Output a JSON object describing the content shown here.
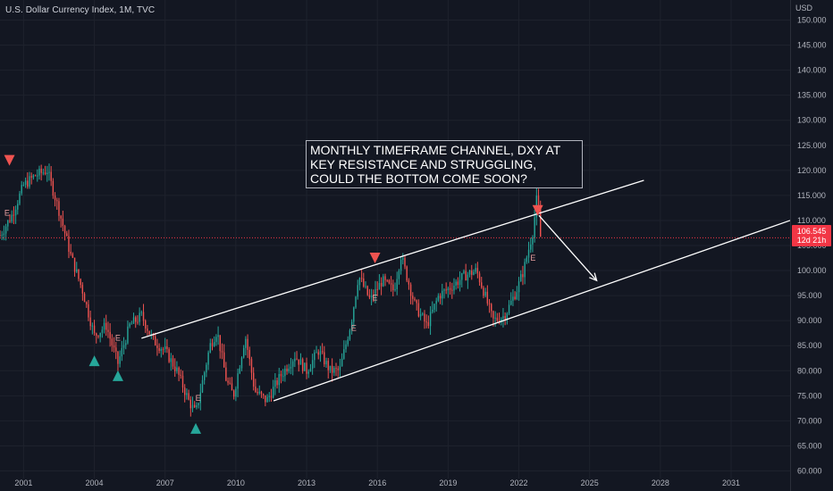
{
  "header": {
    "symbol_title": "U.S. Dollar Currency Index, 1M, TVC"
  },
  "annotation": {
    "text": "MONTHLY TIMEFRAME CHANNEL, DXY AT KEY RESISTANCE AND STRUGGLING, COULD THE BOTTOM COME SOON?"
  },
  "price_tag": {
    "price": "106.545",
    "countdown": "12d 21h"
  },
  "colors": {
    "background": "#131722",
    "up": "#26a69a",
    "down": "#ef5350",
    "grid": "#1e222d",
    "text": "#b2b5be",
    "channel": "#ffffff",
    "price_line": "#f23645"
  },
  "chart_data": {
    "type": "candlestick",
    "title": "U.S. Dollar Currency Index, 1M, TVC",
    "y_unit": "USD",
    "ylim": [
      56,
      154
    ],
    "xlim": [
      2000.0,
      2033.5
    ],
    "y_ticks": [
      "150.000",
      "145.000",
      "140.000",
      "135.000",
      "130.000",
      "125.000",
      "120.000",
      "115.000",
      "110.000",
      "105.000",
      "100.000",
      "95.000",
      "90.000",
      "85.000",
      "80.000",
      "75.000",
      "70.000",
      "65.000",
      "60.000"
    ],
    "x_ticks": [
      "2001",
      "2004",
      "2007",
      "2010",
      "2013",
      "2016",
      "2019",
      "2022",
      "2025",
      "2028",
      "2031"
    ],
    "last_price": 106.545,
    "price_path": [
      [
        2000.0,
        107
      ],
      [
        2000.5,
        111
      ],
      [
        2001.0,
        117
      ],
      [
        2001.5,
        119
      ],
      [
        2002.0,
        120
      ],
      [
        2002.5,
        112
      ],
      [
        2003.0,
        103
      ],
      [
        2003.5,
        96
      ],
      [
        2004.0,
        87
      ],
      [
        2004.5,
        89
      ],
      [
        2005.0,
        81.5
      ],
      [
        2005.5,
        89
      ],
      [
        2006.0,
        91
      ],
      [
        2006.5,
        86
      ],
      [
        2007.0,
        84
      ],
      [
        2007.5,
        80
      ],
      [
        2008.0,
        74
      ],
      [
        2008.3,
        71.5
      ],
      [
        2008.9,
        85
      ],
      [
        2009.2,
        88
      ],
      [
        2009.6,
        78
      ],
      [
        2009.9,
        75
      ],
      [
        2010.4,
        87
      ],
      [
        2010.8,
        76
      ],
      [
        2011.3,
        74
      ],
      [
        2011.9,
        79
      ],
      [
        2012.5,
        83
      ],
      [
        2013.0,
        80
      ],
      [
        2013.5,
        84
      ],
      [
        2014.0,
        80
      ],
      [
        2014.4,
        80
      ],
      [
        2014.9,
        90
      ],
      [
        2015.2,
        99
      ],
      [
        2015.7,
        94
      ],
      [
        2016.2,
        98
      ],
      [
        2016.7,
        96
      ],
      [
        2017.0,
        103
      ],
      [
        2017.6,
        93
      ],
      [
        2018.1,
        89
      ],
      [
        2018.6,
        95
      ],
      [
        2019.2,
        97
      ],
      [
        2019.7,
        99
      ],
      [
        2020.2,
        100
      ],
      [
        2020.5,
        96
      ],
      [
        2020.9,
        90
      ],
      [
        2021.4,
        91
      ],
      [
        2021.9,
        96
      ],
      [
        2022.2,
        100
      ],
      [
        2022.6,
        108
      ],
      [
        2022.75,
        114
      ],
      [
        2022.85,
        111
      ],
      [
        2022.92,
        106.5
      ]
    ],
    "channel_upper": [
      [
        2006.0,
        86.5
      ],
      [
        2027.3,
        118
      ]
    ],
    "channel_lower": [
      [
        2011.6,
        74
      ],
      [
        2033.5,
        110
      ]
    ],
    "projection_arrow": [
      [
        2022.85,
        111
      ],
      [
        2025.3,
        98
      ]
    ],
    "price_line": 106.545,
    "markers": [
      {
        "type": "down",
        "x": 2000.4,
        "y": 122
      },
      {
        "type": "up",
        "x": 2004.0,
        "y": 82
      },
      {
        "type": "up",
        "x": 2005.0,
        "y": 79
      },
      {
        "type": "up",
        "x": 2008.3,
        "y": 68.5
      },
      {
        "type": "down",
        "x": 2015.9,
        "y": 102.5
      },
      {
        "type": "down",
        "x": 2022.8,
        "y": 112
      }
    ],
    "events": [
      {
        "label": "E",
        "x": 2000.3,
        "y": 111
      },
      {
        "label": "E",
        "x": 2005.0,
        "y": 86
      },
      {
        "label": "E",
        "x": 2008.4,
        "y": 74
      },
      {
        "label": "E",
        "x": 2015.0,
        "y": 88
      },
      {
        "label": "E",
        "x": 2015.9,
        "y": 94
      },
      {
        "label": "E",
        "x": 2022.6,
        "y": 102
      }
    ]
  }
}
